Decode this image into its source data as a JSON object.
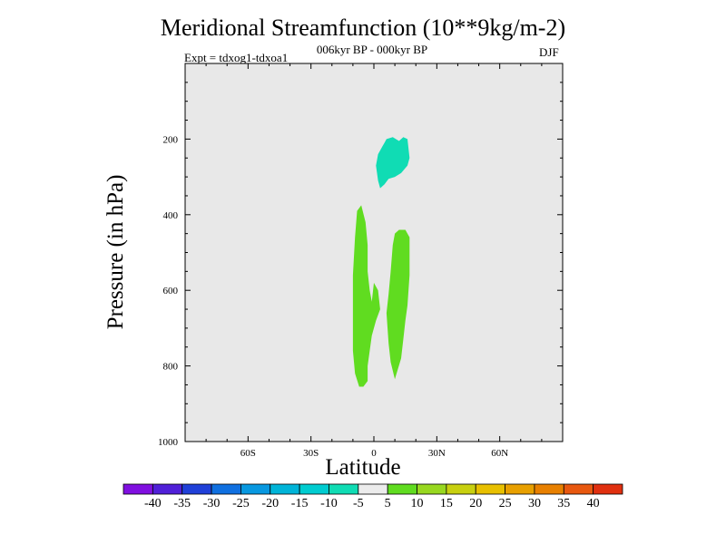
{
  "chart_data": {
    "type": "contour",
    "title": "Meridional Streamfunction (10**9kg/m-2)",
    "subtitle": "006kyr BP - 000kyr BP",
    "experiment": "Expt = tdxog1-tdxoa1",
    "season": "DJF",
    "xlabel": "Latitude",
    "ylabel": "Pressure (in hPa)",
    "xlim": [
      -90,
      90
    ],
    "ylim": [
      1000,
      0
    ],
    "x_ticks": [
      {
        "value": -60,
        "label": "60S"
      },
      {
        "value": -30,
        "label": "30S"
      },
      {
        "value": 0,
        "label": "0"
      },
      {
        "value": 30,
        "label": "30N"
      },
      {
        "value": 60,
        "label": "60N"
      }
    ],
    "y_ticks": [
      {
        "value": 200,
        "label": "200"
      },
      {
        "value": 400,
        "label": "400"
      },
      {
        "value": 600,
        "label": "600"
      },
      {
        "value": 800,
        "label": "800"
      },
      {
        "value": 1000,
        "label": "1000"
      }
    ],
    "background_color": "#e8e8e8",
    "regions": [
      {
        "name": "negative-cell-upper",
        "level": "-10 to -5",
        "color": "#10dcb4",
        "points": [
          [
            5,
            210
          ],
          [
            6,
            200
          ],
          [
            9,
            195
          ],
          [
            12,
            205
          ],
          [
            14,
            195
          ],
          [
            16,
            200
          ],
          [
            17,
            250
          ],
          [
            16,
            270
          ],
          [
            13,
            290
          ],
          [
            10,
            300
          ],
          [
            7,
            305
          ],
          [
            5,
            320
          ],
          [
            3,
            330
          ],
          [
            2,
            310
          ],
          [
            1,
            270
          ],
          [
            2,
            240
          ],
          [
            4,
            220
          ]
        ]
      },
      {
        "name": "positive-cell-left",
        "level": "5 to 10",
        "color": "#60dc20",
        "points": [
          [
            -8,
            390
          ],
          [
            -6,
            375
          ],
          [
            -4,
            420
          ],
          [
            -3,
            480
          ],
          [
            -3,
            550
          ],
          [
            -2,
            600
          ],
          [
            -1,
            630
          ],
          [
            0,
            580
          ],
          [
            2,
            600
          ],
          [
            3,
            650
          ],
          [
            1,
            680
          ],
          [
            -1,
            720
          ],
          [
            -2,
            760
          ],
          [
            -3,
            800
          ],
          [
            -3,
            840
          ],
          [
            -5,
            855
          ],
          [
            -7,
            855
          ],
          [
            -9,
            820
          ],
          [
            -10,
            760
          ],
          [
            -10,
            660
          ],
          [
            -10,
            560
          ],
          [
            -9,
            460
          ]
        ]
      },
      {
        "name": "positive-cell-right",
        "level": "5 to 10",
        "color": "#60dc20",
        "points": [
          [
            9,
            480
          ],
          [
            10,
            450
          ],
          [
            12,
            440
          ],
          [
            15,
            440
          ],
          [
            17,
            460
          ],
          [
            17,
            560
          ],
          [
            16,
            640
          ],
          [
            15,
            680
          ],
          [
            14,
            730
          ],
          [
            13,
            780
          ],
          [
            10,
            835
          ],
          [
            8,
            790
          ],
          [
            7,
            740
          ],
          [
            6,
            660
          ],
          [
            7,
            610
          ],
          [
            8,
            550
          ]
        ]
      }
    ],
    "colorbar": {
      "colors": [
        "#8010e0",
        "#5020d8",
        "#2040d8",
        "#1070e0",
        "#0898e0",
        "#00b4d8",
        "#00ccd0",
        "#10dcb4",
        "#ececec",
        "#60dc20",
        "#98d820",
        "#c8d010",
        "#e8c000",
        "#e8a000",
        "#e88000",
        "#e85810",
        "#e03010"
      ],
      "labels": [
        "-40",
        "-35",
        "-30",
        "-25",
        "-20",
        "-15",
        "-10",
        "-5",
        "5",
        "10",
        "15",
        "20",
        "25",
        "30",
        "35",
        "40"
      ]
    }
  }
}
